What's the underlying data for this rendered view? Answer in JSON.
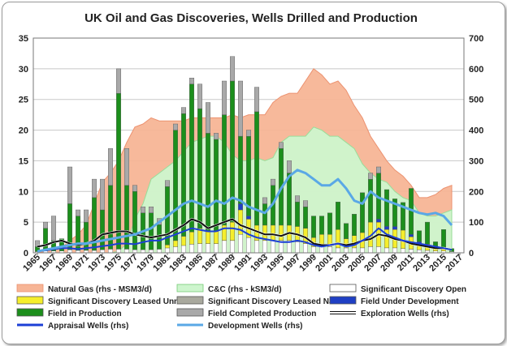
{
  "chart_data": {
    "type": "bar",
    "title": "UK Oil and Gas Discoveries, Wells Drilled and Production",
    "xlabel": "",
    "ylabel": "",
    "y2label": "",
    "ylim": [
      0,
      35
    ],
    "y2lim": [
      0,
      700
    ],
    "yticks": [
      0,
      5,
      10,
      15,
      20,
      25,
      30,
      35
    ],
    "y2ticks": [
      0,
      100,
      200,
      300,
      400,
      500,
      600,
      700
    ],
    "xtick_labels": [
      "1965",
      "1967",
      "1969",
      "1971",
      "1973",
      "1975",
      "1977",
      "1979",
      "1981",
      "1983",
      "1985",
      "1987",
      "1989",
      "1991",
      "1993",
      "1995",
      "1997",
      "1999",
      "2001",
      "2003",
      "2005",
      "2007",
      "2009",
      "2011",
      "2013",
      "2015",
      "2017"
    ],
    "legend_position": "bottom",
    "grid": true,
    "x": [
      1965,
      1966,
      1967,
      1968,
      1969,
      1970,
      1971,
      1972,
      1973,
      1974,
      1975,
      1976,
      1977,
      1978,
      1979,
      1980,
      1981,
      1982,
      1983,
      1984,
      1985,
      1986,
      1987,
      1988,
      1989,
      1990,
      1991,
      1992,
      1993,
      1994,
      1995,
      1996,
      1997,
      1998,
      1999,
      2000,
      2001,
      2002,
      2003,
      2004,
      2005,
      2006,
      2007,
      2008,
      2009,
      2010,
      2011,
      2012,
      2013,
      2014,
      2015,
      2016
    ],
    "stacked_bars": [
      {
        "name": "Significant Discovery Open",
        "color": "#ffffff",
        "values": [
          0.2,
          0.3,
          0.3,
          0.3,
          0.5,
          0.4,
          0.4,
          0.4,
          0.5,
          0.6,
          0.6,
          0.6,
          0.5,
          0.5,
          0.5,
          0.6,
          0.8,
          1,
          1.2,
          1.4,
          1.5,
          1.5,
          1.5,
          2,
          2,
          3,
          2.5,
          2,
          2,
          2,
          2,
          2,
          1.8,
          1.5,
          1,
          1,
          1,
          0.8,
          0.8,
          0.8,
          0.8,
          1,
          1,
          0.8,
          0.8,
          0.7,
          0.6,
          0.5,
          0.4,
          0.3,
          0.3,
          0.2
        ]
      },
      {
        "name": "Significant Discovery Leased Unnamed",
        "color": "#f5ee2c",
        "values": [
          0,
          0,
          0,
          0,
          0,
          0,
          0,
          0,
          0,
          0,
          0,
          0,
          0,
          0,
          0,
          0,
          0.5,
          1,
          1.5,
          2,
          2.5,
          2,
          2,
          2.5,
          3,
          4,
          3,
          2.5,
          2.5,
          2.5,
          2.5,
          2.5,
          2.5,
          2.5,
          1.5,
          2,
          2,
          3,
          1.5,
          2,
          2.5,
          4,
          4,
          3,
          3,
          3,
          2,
          1,
          1,
          0.5,
          0.5,
          0
        ]
      },
      {
        "name": "Significant Discovery Leased Named",
        "color": "#a9a99e",
        "values": [
          0,
          0,
          0,
          0,
          0,
          0,
          0,
          0,
          0,
          0,
          0,
          0,
          0,
          0,
          0,
          0,
          0,
          0,
          0,
          0,
          0,
          0,
          0,
          0,
          0,
          0,
          0,
          0,
          0,
          0,
          0,
          0,
          0,
          0,
          0,
          0,
          0,
          0,
          0,
          0,
          0,
          0,
          0,
          0,
          0,
          0,
          0,
          0,
          0,
          0,
          0,
          0
        ]
      },
      {
        "name": "Field Under Development",
        "color": "#1f3fc4",
        "values": [
          0,
          0,
          0,
          0,
          0,
          0,
          0,
          0,
          0,
          0,
          0,
          0,
          0,
          0,
          0,
          0,
          0,
          0,
          0,
          0,
          0,
          0,
          0,
          0,
          0,
          1,
          0.5,
          0,
          0,
          0,
          0,
          0,
          0,
          0,
          0,
          0,
          0,
          0,
          0,
          0,
          0,
          0,
          0.5,
          0.5,
          0.5,
          0,
          0.4,
          0.3,
          0,
          0,
          0,
          0
        ]
      },
      {
        "name": "Field in Production",
        "color": "#1c8f1c",
        "values": [
          0.8,
          3.7,
          1.7,
          2,
          7.5,
          5.6,
          4.6,
          8.6,
          6.5,
          10.4,
          25.4,
          10.4,
          9.5,
          6,
          6,
          4,
          9.5,
          18,
          20,
          24.1,
          19.5,
          16,
          15,
          18,
          23,
          11,
          13,
          18.5,
          3.5,
          6.5,
          12.5,
          8.5,
          4,
          3.5,
          3.5,
          3,
          3.5,
          4.5,
          2.5,
          3.5,
          6.5,
          7,
          7.5,
          6,
          4.5,
          4.5,
          7.5,
          1.8,
          3.6,
          1,
          3,
          0.5
        ]
      },
      {
        "name": "Field Completed Production",
        "color": "#a9a9a9",
        "values": [
          1,
          1,
          4,
          0,
          6,
          1,
          2,
          3,
          5,
          6,
          4,
          6,
          1,
          1,
          1,
          1,
          1,
          1,
          1,
          1,
          4,
          5,
          1,
          5.5,
          4,
          9,
          1,
          4,
          1,
          1,
          1,
          2,
          1,
          1,
          0,
          0,
          0,
          0,
          0,
          0,
          0,
          1,
          1,
          0,
          0,
          0,
          0,
          0,
          0,
          0,
          0,
          0
        ]
      }
    ],
    "lines": [
      {
        "name": "Natural Gas (rhs - MSM3/d)",
        "color": "#f7b596",
        "type": "area",
        "values": [
          1,
          4,
          10,
          18,
          40,
          60,
          90,
          160,
          230,
          260,
          300,
          360,
          410,
          420,
          440,
          430,
          430,
          430,
          430,
          440,
          440,
          440,
          440,
          440,
          450,
          440,
          450,
          450,
          450,
          490,
          510,
          520,
          520,
          560,
          600,
          580,
          550,
          560,
          530,
          480,
          440,
          380,
          340,
          300,
          270,
          250,
          220,
          180,
          180,
          190,
          210,
          220
        ]
      },
      {
        "name": "C&C (rhs - kSM3/d)",
        "color": "#cdf5cd",
        "type": "area",
        "values": [
          0,
          0,
          0,
          0,
          0,
          0,
          0,
          0,
          0,
          0,
          5,
          30,
          110,
          160,
          240,
          260,
          280,
          300,
          330,
          360,
          370,
          380,
          380,
          360,
          320,
          300,
          300,
          310,
          300,
          310,
          360,
          380,
          380,
          380,
          410,
          400,
          380,
          380,
          360,
          340,
          290,
          260,
          240,
          230,
          200,
          180,
          170,
          130,
          120,
          120,
          130,
          140
        ]
      },
      {
        "name": "Exploration Wells (rhs)",
        "color": "#111111",
        "type": "line",
        "values": [
          20,
          25,
          35,
          40,
          30,
          25,
          30,
          40,
          60,
          65,
          70,
          70,
          60,
          55,
          50,
          55,
          60,
          75,
          90,
          110,
          100,
          80,
          90,
          100,
          110,
          90,
          80,
          70,
          60,
          60,
          55,
          65,
          60,
          50,
          30,
          25,
          25,
          30,
          25,
          30,
          40,
          45,
          60,
          55,
          45,
          40,
          30,
          25,
          20,
          15,
          15,
          10
        ]
      },
      {
        "name": "Appraisal Wells (rhs)",
        "color": "#1c3fd6",
        "type": "line",
        "values": [
          5,
          8,
          12,
          15,
          15,
          12,
          15,
          18,
          22,
          25,
          30,
          30,
          28,
          35,
          40,
          40,
          50,
          60,
          70,
          80,
          75,
          70,
          70,
          80,
          80,
          75,
          60,
          50,
          45,
          40,
          35,
          35,
          40,
          35,
          25,
          20,
          25,
          30,
          20,
          25,
          40,
          55,
          80,
          60,
          50,
          40,
          35,
          30,
          25,
          20,
          15,
          10
        ]
      },
      {
        "name": "Development Wells (rhs)",
        "color": "#5aa8e6",
        "type": "line",
        "values": [
          5,
          10,
          15,
          20,
          25,
          30,
          30,
          35,
          40,
          45,
          50,
          55,
          60,
          70,
          80,
          100,
          120,
          140,
          160,
          170,
          160,
          150,
          170,
          160,
          180,
          170,
          150,
          140,
          130,
          160,
          210,
          250,
          270,
          260,
          240,
          220,
          220,
          240,
          210,
          170,
          160,
          200,
          180,
          170,
          160,
          150,
          140,
          130,
          125,
          130,
          120,
          90
        ]
      }
    ]
  }
}
